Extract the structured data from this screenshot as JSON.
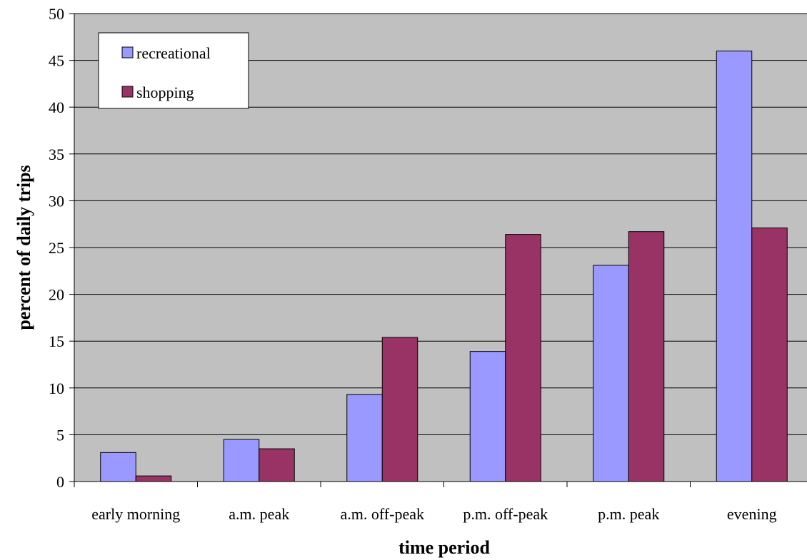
{
  "chart_data": {
    "type": "bar",
    "title": "",
    "xlabel": "time period",
    "ylabel": "percent of daily trips",
    "categories": [
      "early morning",
      "a.m. peak",
      "a.m. off-peak",
      "p.m. off-peak",
      "p.m. peak",
      "evening"
    ],
    "series": [
      {
        "name": "recreational",
        "color": "#9999ff",
        "values": [
          3.1,
          4.5,
          9.3,
          13.9,
          23.1,
          46.0
        ]
      },
      {
        "name": "shopping",
        "color": "#993366",
        "values": [
          0.6,
          3.5,
          15.4,
          26.4,
          26.7,
          27.1
        ]
      }
    ],
    "ylim": [
      0,
      50
    ],
    "yticks": [
      0,
      5,
      10,
      15,
      20,
      25,
      30,
      35,
      40,
      45,
      50
    ],
    "grid": true,
    "plot_background": "#c0c0c0",
    "legend_position": "top-left"
  }
}
